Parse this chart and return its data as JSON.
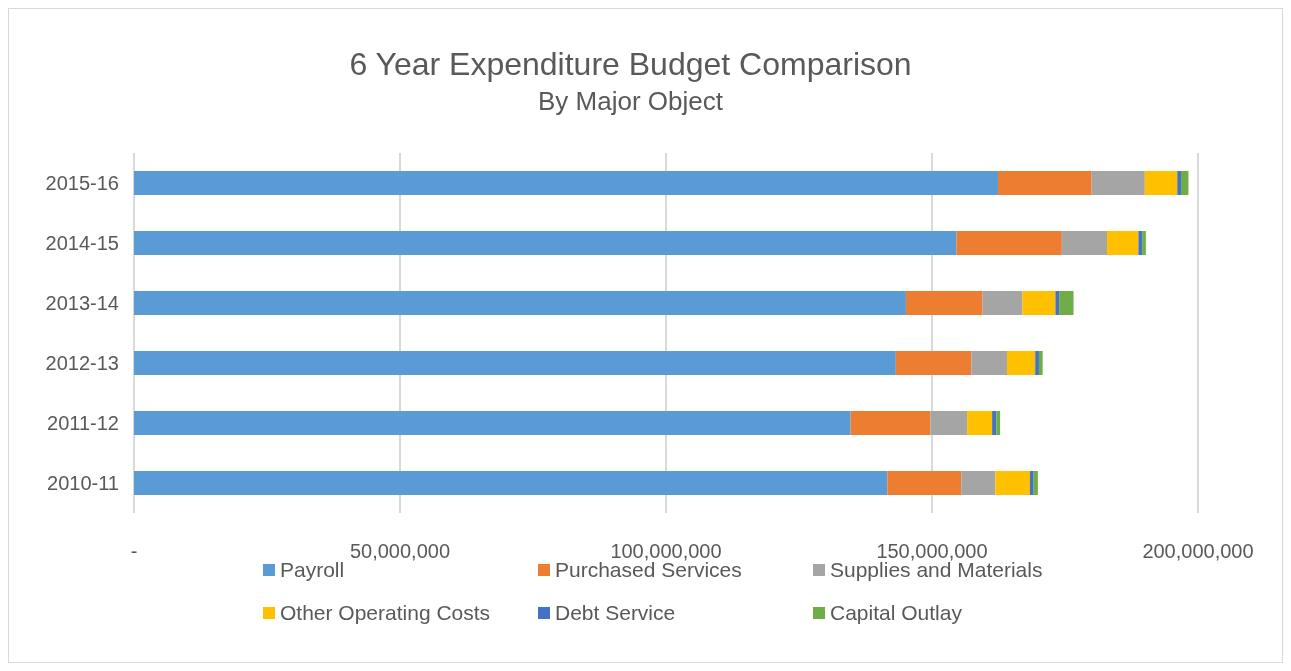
{
  "chart_data": {
    "type": "bar",
    "orientation": "horizontal",
    "stacked": true,
    "title": "6 Year Expenditure Budget Comparison",
    "subtitle": "By Major Object",
    "categories": [
      "2015-16",
      "2014-15",
      "2013-14",
      "2012-13",
      "2011-12",
      "2010-11"
    ],
    "series": [
      {
        "name": "Payroll",
        "color": "#5b9bd5",
        "values": [
          162400000,
          154600000,
          145100000,
          143200000,
          134700000,
          141600000
        ]
      },
      {
        "name": "Purchased Services",
        "color": "#ed7d31",
        "values": [
          17600000,
          19800000,
          14400000,
          14200000,
          15000000,
          13900000
        ]
      },
      {
        "name": "Supplies and Materials",
        "color": "#a5a5a5",
        "values": [
          10000000,
          8500000,
          7500000,
          6700000,
          6900000,
          6400000
        ]
      },
      {
        "name": "Other Operating Costs",
        "color": "#ffc000",
        "values": [
          6100000,
          5900000,
          6200000,
          5300000,
          4700000,
          6500000
        ]
      },
      {
        "name": "Debt Service",
        "color": "#4472c4",
        "values": [
          700000,
          700000,
          700000,
          700000,
          800000,
          700000
        ]
      },
      {
        "name": "Capital Outlay",
        "color": "#70ad47",
        "values": [
          1400000,
          700000,
          2700000,
          700000,
          700000,
          800000
        ]
      }
    ],
    "xlim": [
      0,
      200000000
    ],
    "xticks": [
      {
        "value": 0,
        "label": "-"
      },
      {
        "value": 50000000,
        "label": "50,000,000"
      },
      {
        "value": 100000000,
        "label": "100,000,000"
      },
      {
        "value": 150000000,
        "label": "150,000,000"
      },
      {
        "value": 200000000,
        "label": "200,000,000"
      }
    ],
    "grid": "x",
    "legend": "bottom"
  }
}
